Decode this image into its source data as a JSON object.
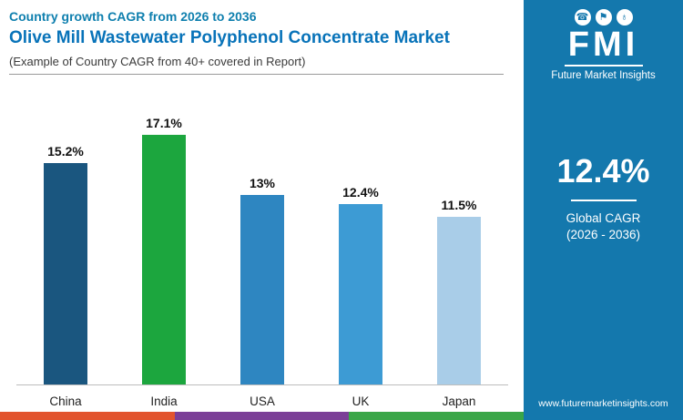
{
  "header": {
    "kicker": "Country growth CAGR from 2026 to 2036",
    "title": "Olive Mill Wastewater Polyphenol Concentrate Market",
    "subtitle": "(Example of Country CAGR from 40+ covered in Report)"
  },
  "sidebar": {
    "logo_text": "FMI",
    "brand_name": "Future Market Insights",
    "cagr_value": "12.4%",
    "cagr_label_line1": "Global CAGR",
    "cagr_label_line2": "(2026 - 2036)",
    "website": "www.futuremarketinsights.com",
    "background_color": "#1478ad"
  },
  "chart_data": {
    "type": "bar",
    "title": "Country growth CAGR from 2026 to 2036",
    "categories": [
      "China",
      "India",
      "USA",
      "UK",
      "Japan"
    ],
    "values": [
      15.2,
      17.1,
      13,
      12.4,
      11.5
    ],
    "value_labels": [
      "15.2%",
      "17.1%",
      "13%",
      "12.4%",
      "11.5%"
    ],
    "bar_colors": [
      "#1a567f",
      "#1ca63e",
      "#2e86c1",
      "#3d9bd4",
      "#a9cde8"
    ],
    "xlabel": "",
    "ylabel": "",
    "ylim": [
      0,
      18
    ],
    "grid": false,
    "legend": "none",
    "value_label_position": "above"
  },
  "footer": {
    "strip_colors": [
      "#e2542e",
      "#7b3f97",
      "#3aa648"
    ]
  },
  "icons": {
    "logo_icon_1": "phone-icon",
    "logo_icon_2": "flag-person-icon",
    "logo_icon_3": "globe-icon"
  }
}
